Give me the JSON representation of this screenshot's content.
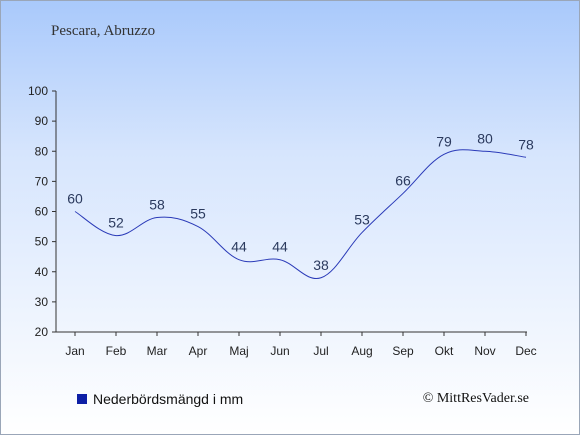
{
  "header": {
    "location": "Pescara, Abruzzo"
  },
  "legend": {
    "label": "Nederbördsmängd i mm",
    "color": "#0d1fa6"
  },
  "footer": {
    "copyright": "© MittResVader.se"
  },
  "chart_data": {
    "type": "line",
    "categories": [
      "Jan",
      "Feb",
      "Mar",
      "Apr",
      "Maj",
      "Jun",
      "Jul",
      "Aug",
      "Sep",
      "Okt",
      "Nov",
      "Dec"
    ],
    "series": [
      {
        "name": "Nederbördsmängd i mm",
        "values": [
          60,
          52,
          58,
          55,
          44,
          44,
          38,
          53,
          66,
          79,
          80,
          78
        ],
        "color": "#2a3ab8"
      }
    ],
    "ylim": [
      20,
      100
    ],
    "yticks": [
      20,
      30,
      40,
      50,
      60,
      70,
      80,
      90,
      100
    ],
    "grid": false,
    "legend_position": "bottom-left"
  }
}
